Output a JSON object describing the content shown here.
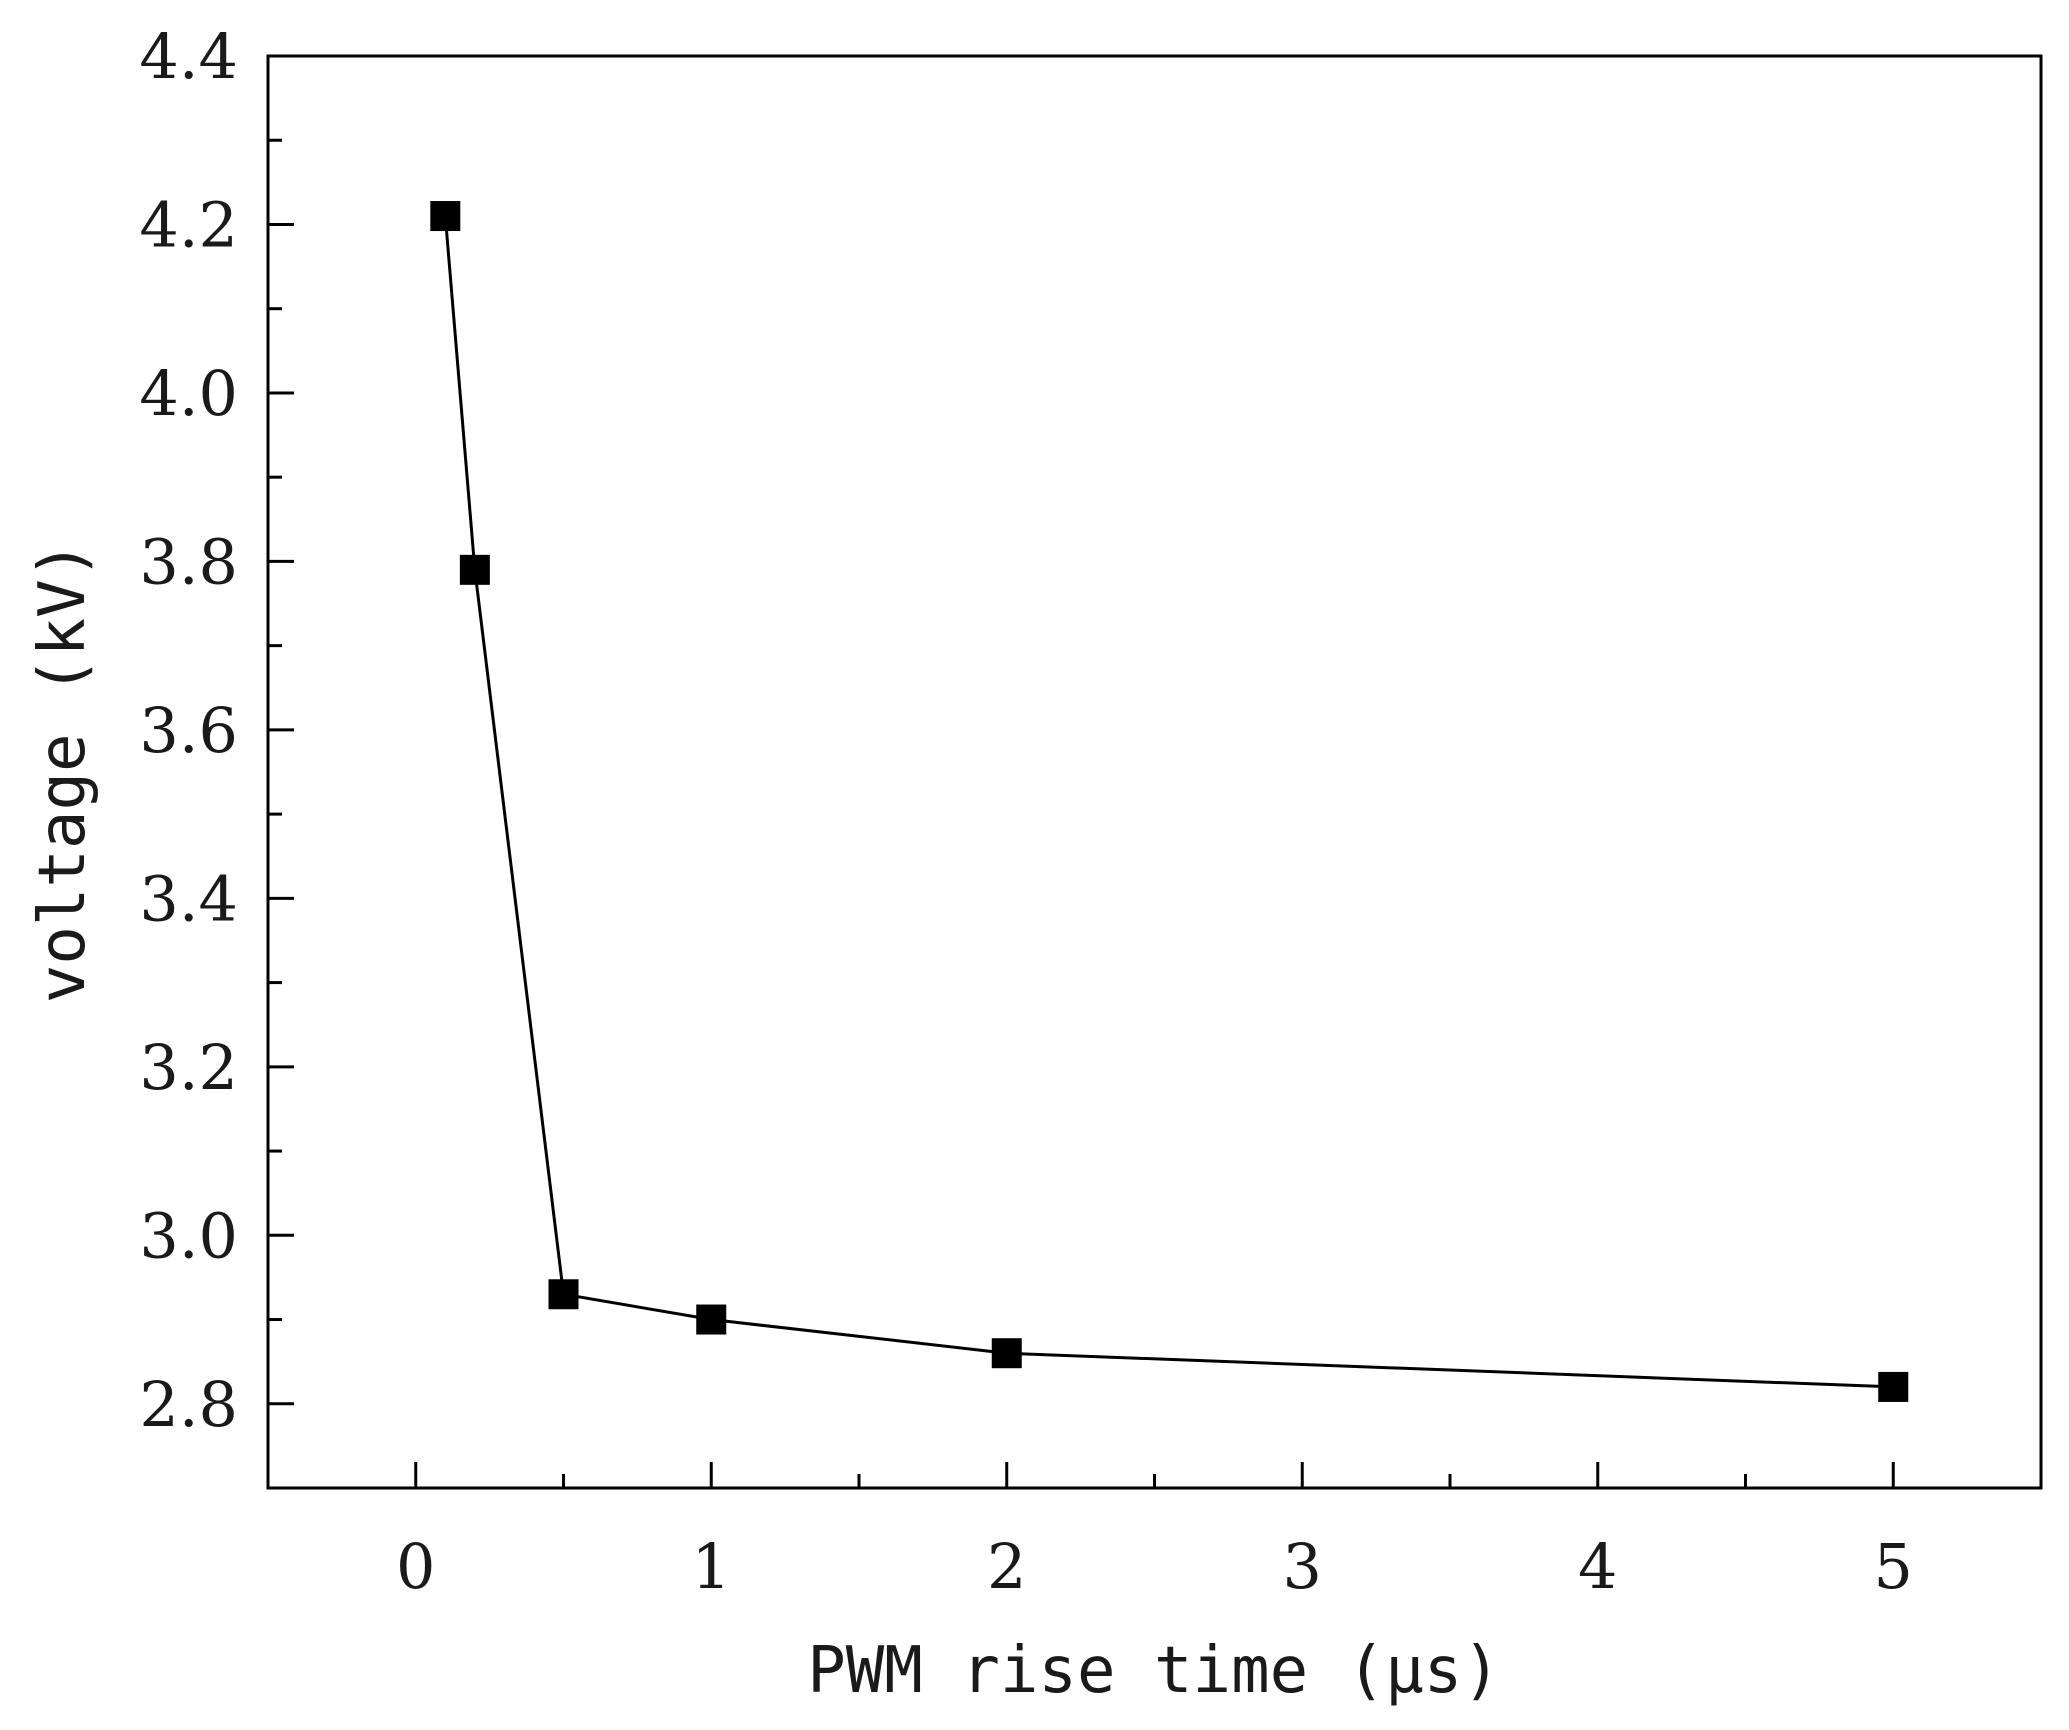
{
  "chart_data": {
    "type": "line",
    "xlabel": "PWM rise time (μs)",
    "ylabel": "voltage (kV)",
    "xlim": [
      -0.5,
      5.5
    ],
    "ylim": [
      2.7,
      4.4
    ],
    "x_ticks": [
      0,
      1,
      2,
      3,
      4,
      5
    ],
    "x_tick_labels": [
      "0",
      "1",
      "2",
      "3",
      "4",
      "5"
    ],
    "y_ticks": [
      2.8,
      3.0,
      3.2,
      3.4,
      3.6,
      3.8,
      4.0,
      4.2,
      4.4
    ],
    "y_tick_labels": [
      "2.8",
      "3.0",
      "3.2",
      "3.4",
      "3.6",
      "3.8",
      "4.0",
      "4.2",
      "4.4"
    ],
    "grid": false,
    "series": [
      {
        "x": [
          0.1,
          0.2,
          0.5,
          1,
          2,
          5
        ],
        "y": [
          4.21,
          3.79,
          2.93,
          2.9,
          2.86,
          2.82
        ],
        "marker": "square",
        "color": "#000000"
      }
    ]
  }
}
